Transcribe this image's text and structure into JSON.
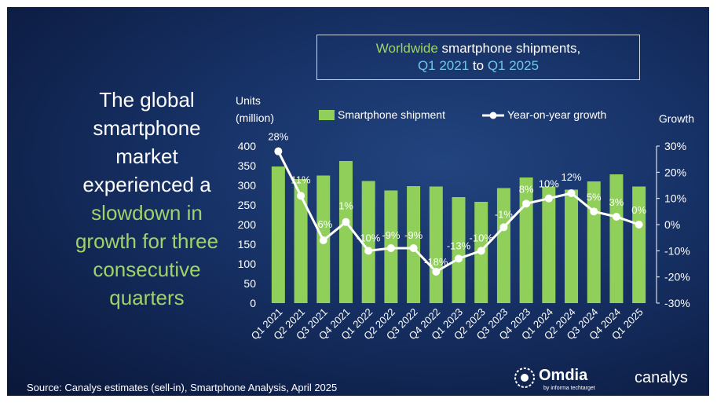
{
  "title": {
    "part1_green": "Worldwide",
    "part1_rest": " smartphone shipments,",
    "part2_a": "Q1 2021",
    "part2_mid": " to ",
    "part2_b": "Q1 2025"
  },
  "headline": {
    "white_lines": [
      "The global",
      "smartphone",
      "market",
      "experienced a"
    ],
    "green_lines": [
      "slowdown in",
      "growth for three",
      "consecutive",
      "quarters"
    ]
  },
  "source": "Source: Canalys estimates (sell-in), Smartphone Analysis, April 2025",
  "logos": {
    "omdia": "Omdia",
    "omdia_sub": "by informa techtarget",
    "canalys": "canalys"
  },
  "colors": {
    "bar": "#8fcf5a",
    "line": "#ffffff",
    "accent_green": "#9fd36a",
    "accent_blue": "#6fc6ea",
    "background": "#173267"
  },
  "chart_data": {
    "type": "bar+line",
    "categories": [
      "Q1 2021",
      "Q2 2021",
      "Q3 2021",
      "Q4 2021",
      "Q1 2022",
      "Q2 2022",
      "Q3 2022",
      "Q4 2022",
      "Q1 2023",
      "Q2 2023",
      "Q3 2023",
      "Q4 2023",
      "Q1 2024",
      "Q2 2024",
      "Q3 2024",
      "Q4 2024",
      "Q1 2025"
    ],
    "series": [
      {
        "name": "Smartphone shipment",
        "type": "bar",
        "axis": "left",
        "values": [
          348,
          316,
          325,
          362,
          311,
          287,
          298,
          297,
          270,
          258,
          293,
          320,
          297,
          289,
          310,
          328,
          297
        ]
      },
      {
        "name": "Year-on-year growth",
        "type": "line",
        "axis": "right",
        "values": [
          28,
          11,
          -6,
          1,
          -10,
          -9,
          -9,
          -18,
          -13,
          -10,
          -1,
          8,
          10,
          12,
          5,
          3,
          0
        ],
        "labels": [
          "28%",
          "11%",
          "-6%",
          "1%",
          "-10%",
          "-9%",
          "-9%",
          "-18%",
          "-13%",
          "-10%",
          "-1%",
          "8%",
          "10%",
          "12%",
          "5%",
          "3%",
          "0%"
        ]
      }
    ],
    "ylabel_left": [
      "Units",
      "(million)"
    ],
    "ylabel_right": "Growth",
    "ylim_left": [
      0,
      400
    ],
    "yticks_left": [
      "0",
      "50",
      "100",
      "150",
      "200",
      "250",
      "300",
      "350",
      "400"
    ],
    "ylim_right": [
      -30,
      30
    ],
    "yticks_right": [
      "-30%",
      "-20%",
      "-10%",
      "0%",
      "10%",
      "20%",
      "30%"
    ],
    "grid": false,
    "legend_position": "top"
  }
}
